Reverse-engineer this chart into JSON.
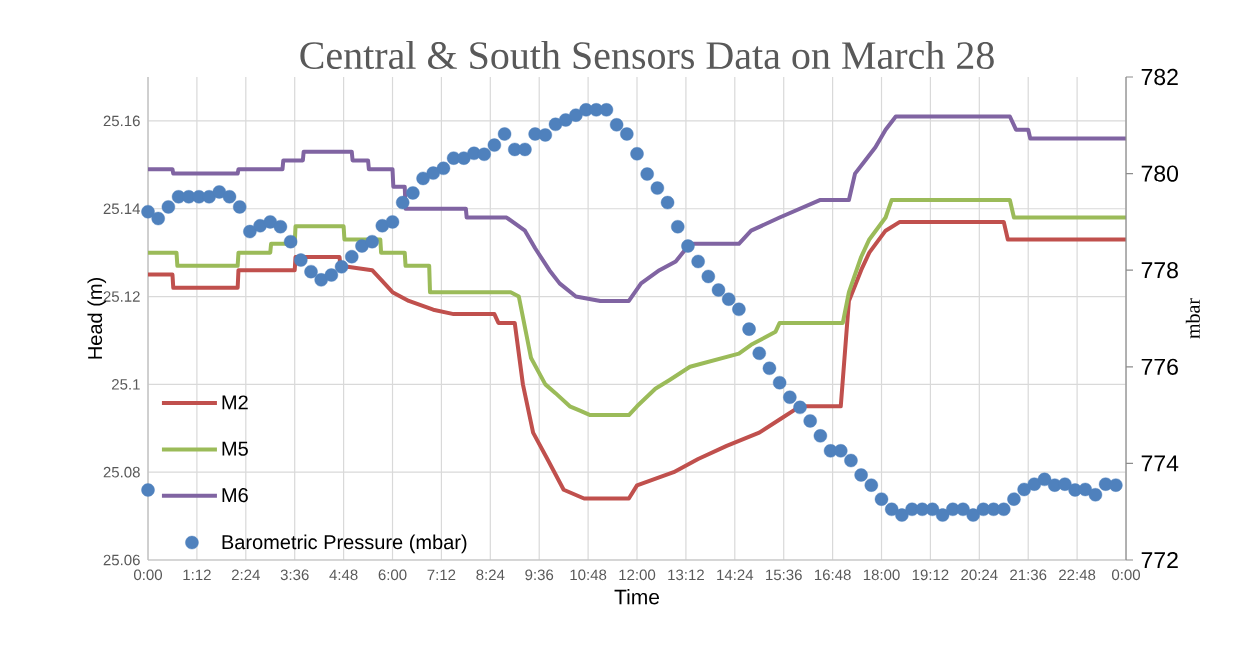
{
  "chart_data": {
    "type": "line",
    "title": "Central & South Sensors Data on March 28",
    "xlabel": "Time",
    "ylabel": "Head (m)",
    "y2label": "mbar",
    "xlim": [
      0,
      24
    ],
    "xticks": [
      {
        "value": 0,
        "label": "0:00"
      },
      {
        "value": 1.2,
        "label": "1:12"
      },
      {
        "value": 2.4,
        "label": "2:24"
      },
      {
        "value": 3.6,
        "label": "3:36"
      },
      {
        "value": 4.8,
        "label": "4:48"
      },
      {
        "value": 6,
        "label": "6:00"
      },
      {
        "value": 7.2,
        "label": "7:12"
      },
      {
        "value": 8.4,
        "label": "8:24"
      },
      {
        "value": 9.6,
        "label": "9:36"
      },
      {
        "value": 10.8,
        "label": "10:48"
      },
      {
        "value": 12,
        "label": "12:00"
      },
      {
        "value": 13.2,
        "label": "13:12"
      },
      {
        "value": 14.4,
        "label": "14:24"
      },
      {
        "value": 15.6,
        "label": "15:36"
      },
      {
        "value": 16.8,
        "label": "16:48"
      },
      {
        "value": 18,
        "label": "18:00"
      },
      {
        "value": 19.2,
        "label": "19:12"
      },
      {
        "value": 20.4,
        "label": "20:24"
      },
      {
        "value": 21.6,
        "label": "21:36"
      },
      {
        "value": 22.8,
        "label": "22:48"
      },
      {
        "value": 24,
        "label": "0:00"
      }
    ],
    "ylim": [
      25.06,
      25.17
    ],
    "yticks": [
      25.06,
      25.08,
      25.1,
      25.12,
      25.14,
      25.16
    ],
    "y2lim": [
      772,
      782
    ],
    "y2ticks": [
      772,
      774,
      776,
      778,
      780,
      782
    ],
    "grid": true,
    "legend": "bottom left",
    "series": [
      {
        "name": "M2",
        "color": "#c0504d",
        "marker": "none",
        "x": [
          0,
          0.6,
          0.62,
          2.2,
          2.22,
          3.6,
          3.62,
          4.7,
          4.72,
          5.5,
          5.7,
          6.0,
          6.4,
          7.0,
          7.5,
          8.5,
          8.6,
          9.0,
          9.2,
          9.45,
          9.8,
          10.2,
          10.7,
          11.8,
          12.0,
          12.9,
          13.5,
          14.2,
          15.0,
          15.5,
          16.0,
          17.0,
          17.2,
          17.5,
          17.7,
          18.1,
          18.45,
          21.0,
          21.1,
          24
        ],
        "values": [
          25.125,
          25.125,
          25.122,
          25.122,
          25.126,
          25.126,
          25.129,
          25.129,
          25.127,
          25.126,
          25.124,
          25.121,
          25.119,
          25.117,
          25.116,
          25.116,
          25.114,
          25.114,
          25.1,
          25.089,
          25.083,
          25.076,
          25.074,
          25.074,
          25.077,
          25.08,
          25.083,
          25.086,
          25.089,
          25.092,
          25.095,
          25.095,
          25.119,
          25.126,
          25.13,
          25.135,
          25.137,
          25.137,
          25.133,
          25.133
        ]
      },
      {
        "name": "M5",
        "color": "#9bbb59",
        "marker": "none",
        "x": [
          0,
          0.7,
          0.72,
          2.2,
          2.22,
          3.0,
          3.02,
          3.6,
          3.62,
          4.8,
          4.82,
          5.7,
          5.72,
          6.3,
          6.32,
          6.9,
          6.92,
          8.9,
          9.1,
          9.4,
          9.75,
          10.0,
          10.35,
          10.6,
          10.85,
          11.8,
          12.0,
          12.45,
          12.8,
          13.3,
          14.5,
          14.8,
          15.4,
          15.5,
          17.05,
          17.2,
          17.5,
          17.7,
          18.1,
          18.25,
          21.15,
          21.25,
          24
        ],
        "values": [
          25.13,
          25.13,
          25.127,
          25.127,
          25.13,
          25.13,
          25.132,
          25.132,
          25.136,
          25.136,
          25.133,
          25.133,
          25.13,
          25.13,
          25.127,
          25.127,
          25.121,
          25.121,
          25.12,
          25.106,
          25.1,
          25.098,
          25.095,
          25.094,
          25.093,
          25.093,
          25.095,
          25.099,
          25.101,
          25.104,
          25.107,
          25.109,
          25.112,
          25.114,
          25.114,
          25.121,
          25.129,
          25.133,
          25.138,
          25.142,
          25.142,
          25.138,
          25.138
        ]
      },
      {
        "name": "M6",
        "color": "#8064a2",
        "marker": "none",
        "x": [
          0,
          0.6,
          0.62,
          2.2,
          2.22,
          3.3,
          3.32,
          3.8,
          3.82,
          5.0,
          5.02,
          5.4,
          5.42,
          6.0,
          6.02,
          6.3,
          6.32,
          7.8,
          7.82,
          8.8,
          9.25,
          9.5,
          9.85,
          10.1,
          10.5,
          11.1,
          11.8,
          12.1,
          12.55,
          12.95,
          13.3,
          14.5,
          14.8,
          15.5,
          16.5,
          17.2,
          17.35,
          17.6,
          17.85,
          18.1,
          18.35,
          21.15,
          21.3,
          21.6,
          21.65,
          24
        ],
        "values": [
          25.149,
          25.149,
          25.148,
          25.148,
          25.149,
          25.149,
          25.151,
          25.151,
          25.153,
          25.153,
          25.151,
          25.151,
          25.149,
          25.149,
          25.145,
          25.145,
          25.14,
          25.14,
          25.138,
          25.138,
          25.135,
          25.131,
          25.126,
          25.123,
          25.12,
          25.119,
          25.119,
          25.123,
          25.126,
          25.128,
          25.132,
          25.132,
          25.135,
          25.138,
          25.142,
          25.142,
          25.148,
          25.151,
          25.154,
          25.158,
          25.161,
          25.161,
          25.158,
          25.158,
          25.156,
          25.156
        ]
      },
      {
        "name": "Barometric Pressure (mbar)",
        "type": "scatter",
        "axis": "y2",
        "color": "#4f81bd",
        "marker": "circle",
        "x": [
          0,
          0,
          0.25,
          0.5,
          0.75,
          1,
          1.25,
          1.5,
          1.75,
          2,
          2.25,
          2.5,
          2.75,
          3,
          3.25,
          3.5,
          3.75,
          4,
          4.25,
          4.5,
          4.75,
          5,
          5.25,
          5.5,
          5.75,
          6,
          6.25,
          6.5,
          6.75,
          7,
          7.25,
          7.5,
          7.75,
          8,
          8.25,
          8.5,
          8.75,
          9,
          9.25,
          9.5,
          9.75,
          10,
          10.25,
          10.5,
          10.75,
          11,
          11.25,
          11.5,
          11.75,
          12,
          12.25,
          12.5,
          12.75,
          13,
          13.25,
          13.5,
          13.75,
          14,
          14.25,
          14.5,
          14.75,
          15,
          15.25,
          15.5,
          15.75,
          16,
          16.25,
          16.5,
          16.75,
          17,
          17.25,
          17.5,
          17.75,
          18,
          18.25,
          18.5,
          18.75,
          19,
          19.25,
          19.5,
          19.75,
          20,
          20.25,
          20.5,
          20.75,
          21,
          21.25,
          21.5,
          21.75,
          22,
          22.25,
          22.5,
          22.75,
          23,
          23.25,
          23.5,
          23.75
        ],
        "values": [
          773.45,
          779.21,
          779.07,
          779.31,
          779.52,
          779.52,
          779.52,
          779.52,
          779.62,
          779.52,
          779.31,
          778.8,
          778.92,
          779.0,
          778.9,
          778.59,
          778.21,
          777.97,
          777.8,
          777.9,
          778.07,
          778.28,
          778.5,
          778.59,
          778.92,
          779.0,
          779.4,
          779.6,
          779.9,
          780.01,
          780.11,
          780.32,
          780.32,
          780.42,
          780.4,
          780.59,
          780.82,
          780.5,
          780.5,
          780.82,
          780.8,
          781.02,
          781.11,
          781.21,
          781.32,
          781.32,
          781.32,
          781.01,
          780.82,
          780.41,
          779.99,
          779.7,
          779.4,
          778.9,
          778.5,
          778.18,
          777.87,
          777.59,
          777.4,
          777.19,
          776.78,
          776.28,
          775.97,
          775.67,
          775.37,
          775.16,
          774.88,
          774.57,
          774.26,
          774.26,
          774.06,
          773.76,
          773.55,
          773.26,
          773.05,
          772.93,
          773.05,
          773.05,
          773.05,
          772.93,
          773.05,
          773.05,
          772.93,
          773.05,
          773.05,
          773.05,
          773.26,
          773.46,
          773.57,
          773.67,
          773.55,
          773.57,
          773.45,
          773.46,
          773.35,
          773.57,
          773.55
        ]
      }
    ]
  }
}
